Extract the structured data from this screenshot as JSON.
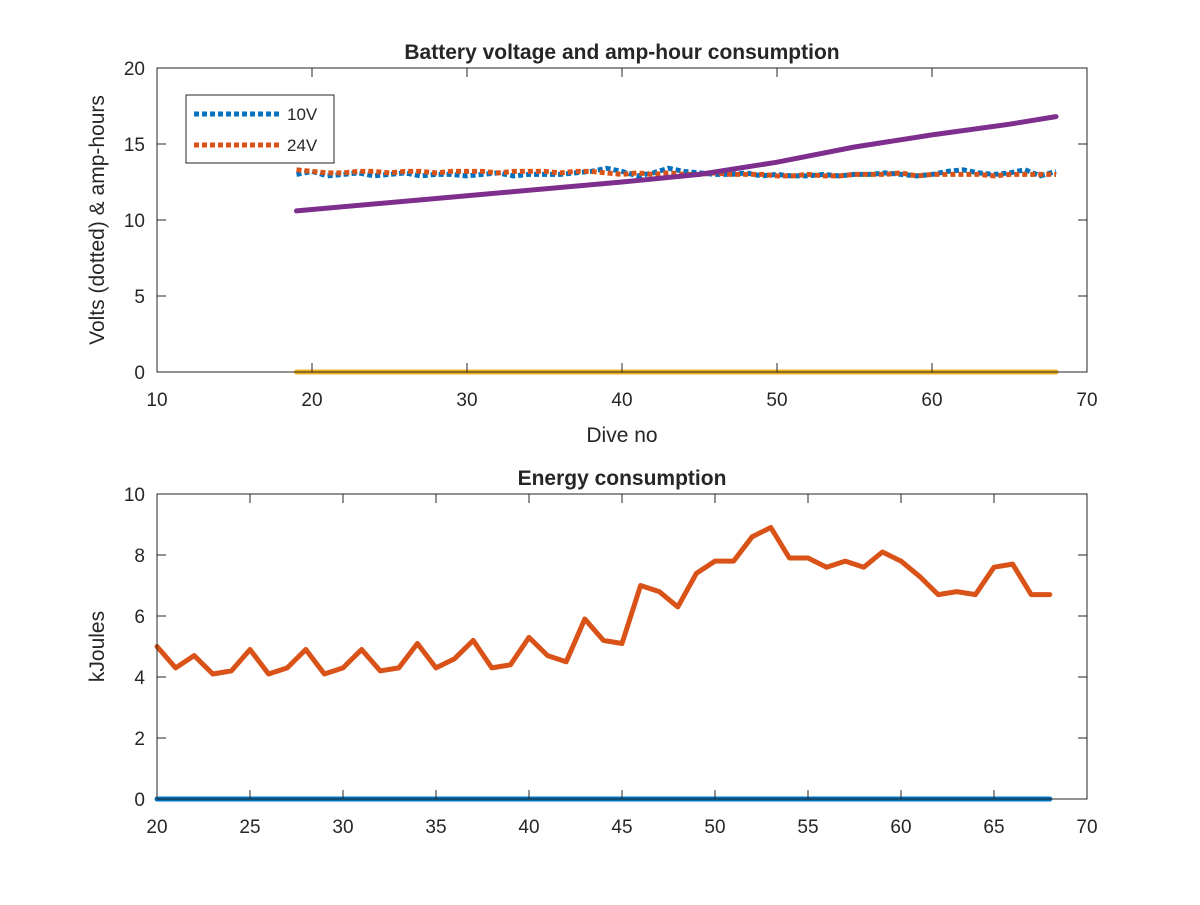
{
  "chart_data": [
    {
      "type": "line",
      "title": "Battery voltage and amp-hour consumption",
      "xlabel": "Dive no",
      "ylabel": "Volts (dotted) & amp-hours",
      "xlim": [
        10,
        70
      ],
      "ylim": [
        0,
        20
      ],
      "xticks": [
        10,
        20,
        30,
        40,
        50,
        60,
        70
      ],
      "yticks": [
        0,
        5,
        10,
        15,
        20
      ],
      "grid": false,
      "legend": "top-left",
      "series": [
        {
          "name": "10V",
          "style": "dotted",
          "color": "#0072BD",
          "x": [
            19,
            20,
            21,
            22,
            23,
            24,
            25,
            26,
            27,
            28,
            29,
            30,
            31,
            32,
            33,
            34,
            35,
            36,
            37,
            38,
            39,
            40,
            41,
            42,
            43,
            44,
            45,
            46,
            47,
            48,
            49,
            50,
            51,
            52,
            53,
            54,
            55,
            56,
            57,
            58,
            59,
            60,
            61,
            62,
            63,
            64,
            65,
            66,
            67,
            68
          ],
          "y": [
            13.0,
            13.2,
            12.9,
            13.0,
            13.1,
            12.9,
            13.0,
            13.1,
            12.9,
            13.0,
            13.0,
            12.9,
            13.0,
            13.1,
            12.9,
            13.0,
            13.0,
            13.0,
            13.1,
            13.2,
            13.4,
            13.2,
            12.9,
            13.1,
            13.4,
            13.2,
            13.1,
            13.0,
            13.0,
            13.1,
            12.9,
            13.0,
            12.9,
            12.9,
            13.0,
            12.9,
            13.0,
            13.0,
            13.1,
            13.0,
            12.9,
            13.0,
            13.2,
            13.3,
            13.1,
            13.0,
            13.1,
            13.3,
            12.9,
            13.2
          ]
        },
        {
          "name": "24V",
          "style": "dotted",
          "color": "#D95319",
          "x": [
            19,
            20,
            21,
            22,
            23,
            24,
            25,
            26,
            27,
            28,
            29,
            30,
            31,
            32,
            33,
            34,
            35,
            36,
            37,
            38,
            39,
            40,
            41,
            42,
            43,
            44,
            45,
            46,
            47,
            48,
            49,
            50,
            51,
            52,
            53,
            54,
            55,
            56,
            57,
            58,
            59,
            60,
            61,
            62,
            63,
            64,
            65,
            66,
            67,
            68
          ],
          "y": [
            13.3,
            13.2,
            13.1,
            13.1,
            13.2,
            13.2,
            13.1,
            13.2,
            13.2,
            13.1,
            13.2,
            13.2,
            13.2,
            13.1,
            13.2,
            13.2,
            13.2,
            13.1,
            13.2,
            13.2,
            13.1,
            13.0,
            13.1,
            13.0,
            13.1,
            13.0,
            13.0,
            13.1,
            13.0,
            13.0,
            13.0,
            12.9,
            12.9,
            13.0,
            12.9,
            12.9,
            13.0,
            13.0,
            13.0,
            13.1,
            12.9,
            13.0,
            13.0,
            13.0,
            13.0,
            12.9,
            13.0,
            13.0,
            13.0,
            13.0
          ]
        },
        {
          "style": "solid",
          "color": "#7E2F8E",
          "x": [
            19,
            30,
            40,
            45,
            50,
            55,
            60,
            65,
            68
          ],
          "y": [
            10.6,
            11.6,
            12.5,
            13.0,
            13.8,
            14.8,
            15.6,
            16.3,
            16.8
          ]
        },
        {
          "style": "solid",
          "color": "#EDB120",
          "x": [
            19,
            68
          ],
          "y": [
            0,
            0
          ]
        }
      ]
    },
    {
      "type": "line",
      "title": "Energy consumption",
      "xlabel": "",
      "ylabel": "kJoules",
      "xlim": [
        20,
        70
      ],
      "ylim": [
        0,
        10
      ],
      "xticks": [
        20,
        25,
        30,
        35,
        40,
        45,
        50,
        55,
        60,
        65,
        70
      ],
      "yticks": [
        0,
        2,
        4,
        6,
        8,
        10
      ],
      "grid": false,
      "series": [
        {
          "style": "solid",
          "color": "#D95319",
          "x": [
            20,
            21,
            22,
            23,
            24,
            25,
            26,
            27,
            28,
            29,
            30,
            31,
            32,
            33,
            34,
            35,
            36,
            37,
            38,
            39,
            40,
            41,
            42,
            43,
            44,
            45,
            46,
            47,
            48,
            49,
            50,
            51,
            52,
            53,
            54,
            55,
            56,
            57,
            58,
            59,
            60,
            61,
            62,
            63,
            64,
            65,
            66,
            67,
            68
          ],
          "y": [
            5.0,
            4.3,
            4.7,
            4.1,
            4.2,
            4.9,
            4.1,
            4.3,
            4.9,
            4.1,
            4.3,
            4.9,
            4.2,
            4.3,
            5.1,
            4.3,
            4.6,
            5.2,
            4.3,
            4.4,
            5.3,
            4.7,
            4.5,
            5.9,
            5.2,
            5.1,
            7.0,
            6.8,
            6.3,
            7.4,
            7.8,
            7.8,
            8.6,
            8.9,
            7.9,
            7.9,
            7.6,
            7.8,
            7.6,
            8.1,
            7.8,
            7.3,
            6.7,
            6.8,
            6.7,
            7.6,
            7.7,
            6.7,
            6.7
          ]
        },
        {
          "style": "solid",
          "color": "#0072BD",
          "x": [
            20,
            68
          ],
          "y": [
            0,
            0
          ]
        }
      ]
    }
  ]
}
